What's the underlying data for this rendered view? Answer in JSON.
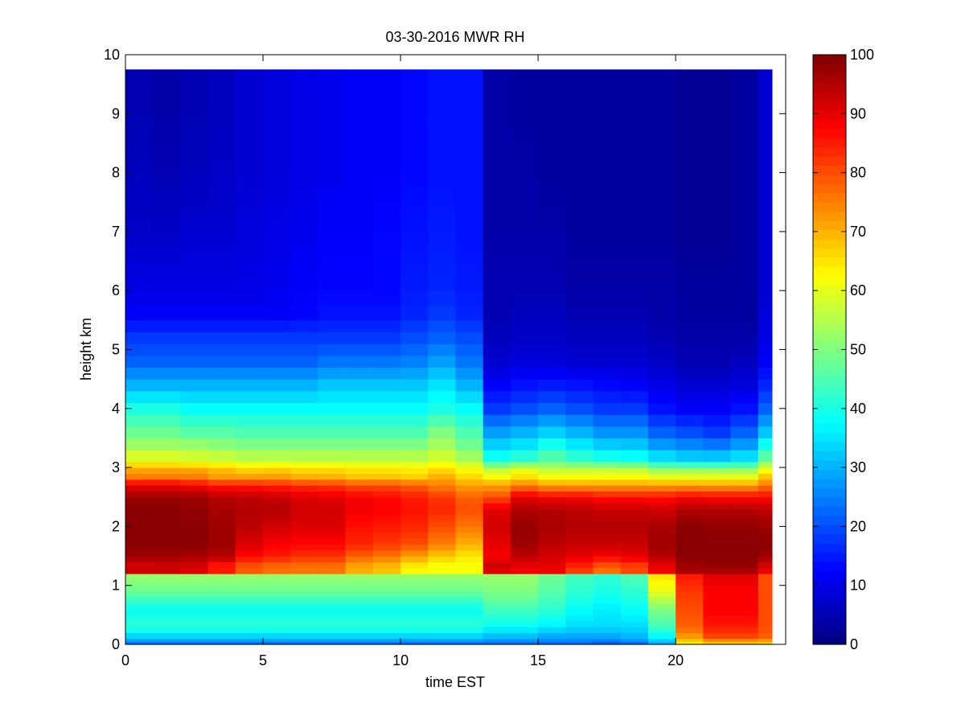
{
  "chart_data": {
    "type": "heatmap",
    "title": "03-30-2016 MWR RH",
    "xlabel": "time EST",
    "ylabel": "height km",
    "xlim": [
      0,
      24
    ],
    "ylim": [
      0,
      10
    ],
    "x_ticks": [
      0,
      5,
      10,
      15,
      20
    ],
    "y_ticks": [
      0,
      1,
      2,
      3,
      4,
      5,
      6,
      7,
      8,
      9,
      10
    ],
    "colorbar": {
      "colormap": "jet",
      "range": [
        0,
        100
      ],
      "ticks": [
        0,
        10,
        20,
        30,
        40,
        50,
        60,
        70,
        80,
        90,
        100
      ]
    },
    "grid": false,
    "x": [
      0,
      1,
      2,
      3,
      4,
      5,
      6,
      7,
      8,
      9,
      10,
      11,
      12,
      13,
      14,
      15,
      16,
      17,
      18,
      19,
      20,
      21,
      22,
      23
    ],
    "x_step": 1,
    "heights": [
      0,
      0.05,
      0.1,
      0.2,
      0.3,
      0.4,
      0.5,
      0.6,
      0.7,
      0.8,
      0.9,
      1.0,
      1.1,
      1.2,
      1.3,
      1.4,
      1.5,
      1.6,
      1.7,
      1.8,
      1.9,
      2.0,
      2.1,
      2.2,
      2.3,
      2.4,
      2.5,
      2.6,
      2.7,
      2.8,
      2.9,
      3.0,
      3.1,
      3.3,
      3.5,
      3.7,
      3.9,
      4.1,
      4.3,
      4.5,
      4.7,
      4.9,
      5.1,
      5.3,
      5.5,
      5.75,
      6.0,
      6.25,
      6.5,
      6.75,
      7.0,
      7.25,
      7.5,
      7.75,
      8.0,
      8.25,
      8.5,
      8.75,
      9.0,
      9.25,
      9.5,
      9.75
    ],
    "profiles": {
      "heights_km": [
        0.0,
        0.12,
        0.3,
        0.6,
        0.9,
        1.15,
        1.2,
        1.35,
        1.5,
        1.7,
        2.0,
        2.3,
        2.5,
        2.7,
        2.85,
        3.0,
        3.1,
        3.3,
        3.6,
        4.0,
        4.4,
        4.8,
        5.2,
        5.6,
        6.0,
        7.0,
        8.0,
        9.0,
        9.75
      ],
      "rh": [
        [
          22,
          32,
          42,
          38,
          48,
          52,
          92,
          92,
          97,
          99,
          99,
          99,
          97,
          90,
          75,
          70,
          62,
          55,
          48,
          40,
          30,
          22,
          18,
          12,
          10,
          7,
          6,
          5,
          5
        ],
        [
          22,
          32,
          42,
          38,
          48,
          52,
          92,
          93,
          97,
          99,
          99,
          99,
          97,
          90,
          75,
          70,
          62,
          55,
          48,
          40,
          30,
          22,
          18,
          12,
          10,
          7,
          5,
          4,
          4
        ],
        [
          22,
          32,
          42,
          38,
          48,
          52,
          90,
          92,
          96,
          99,
          99,
          98,
          97,
          88,
          75,
          70,
          60,
          55,
          46,
          38,
          30,
          22,
          18,
          12,
          10,
          8,
          6,
          5,
          5
        ],
        [
          22,
          32,
          42,
          38,
          48,
          52,
          85,
          86,
          95,
          97,
          97,
          96,
          95,
          85,
          72,
          68,
          60,
          53,
          46,
          38,
          30,
          22,
          18,
          12,
          10,
          8,
          7,
          6,
          6
        ],
        [
          22,
          32,
          42,
          38,
          48,
          52,
          78,
          80,
          87,
          91,
          94,
          95,
          94,
          85,
          72,
          65,
          58,
          52,
          45,
          38,
          30,
          22,
          18,
          12,
          10,
          9,
          8,
          8,
          8
        ],
        [
          22,
          32,
          42,
          38,
          48,
          52,
          76,
          78,
          85,
          88,
          92,
          95,
          93,
          84,
          72,
          66,
          58,
          52,
          45,
          38,
          30,
          22,
          18,
          12,
          11,
          10,
          9,
          9,
          9
        ],
        [
          22,
          32,
          42,
          38,
          48,
          52,
          76,
          77,
          83,
          87,
          91,
          92,
          91,
          83,
          70,
          65,
          58,
          52,
          45,
          38,
          30,
          22,
          18,
          13,
          12,
          11,
          10,
          10,
          10
        ],
        [
          22,
          32,
          42,
          38,
          48,
          52,
          76,
          77,
          83,
          87,
          91,
          92,
          90,
          82,
          70,
          65,
          58,
          52,
          45,
          38,
          32,
          24,
          18,
          14,
          13,
          12,
          11,
          11,
          11
        ],
        [
          22,
          32,
          42,
          38,
          48,
          52,
          70,
          72,
          78,
          84,
          86,
          89,
          88,
          80,
          68,
          64,
          58,
          52,
          45,
          38,
          32,
          24,
          18,
          14,
          13,
          12,
          12,
          12,
          12
        ],
        [
          22,
          32,
          42,
          38,
          48,
          52,
          68,
          70,
          76,
          82,
          85,
          88,
          87,
          80,
          68,
          64,
          58,
          52,
          45,
          38,
          32,
          24,
          18,
          14,
          13,
          13,
          12,
          12,
          12
        ],
        [
          22,
          32,
          42,
          38,
          48,
          52,
          62,
          65,
          72,
          80,
          84,
          86,
          85,
          78,
          67,
          63,
          58,
          52,
          45,
          38,
          32,
          25,
          20,
          16,
          15,
          14,
          13,
          13,
          13
        ],
        [
          22,
          32,
          42,
          38,
          48,
          52,
          62,
          62,
          68,
          75,
          80,
          84,
          82,
          75,
          70,
          65,
          60,
          55,
          50,
          40,
          35,
          28,
          22,
          18,
          16,
          15,
          14,
          14,
          14
        ],
        [
          22,
          32,
          42,
          38,
          48,
          52,
          62,
          62,
          65,
          70,
          76,
          80,
          78,
          72,
          66,
          62,
          56,
          50,
          45,
          38,
          30,
          24,
          20,
          16,
          15,
          14,
          14,
          14,
          14
        ],
        [
          22,
          30,
          38,
          44,
          50,
          52,
          90,
          92,
          88,
          90,
          92,
          90,
          80,
          72,
          62,
          55,
          42,
          35,
          28,
          18,
          12,
          8,
          6,
          5,
          5,
          4,
          4,
          4,
          4
        ],
        [
          22,
          30,
          38,
          44,
          50,
          52,
          88,
          90,
          94,
          97,
          98,
          95,
          90,
          75,
          65,
          58,
          45,
          37,
          30,
          20,
          14,
          9,
          7,
          6,
          5,
          4,
          4,
          3,
          3
        ],
        [
          22,
          28,
          36,
          42,
          46,
          48,
          88,
          90,
          92,
          94,
          96,
          95,
          88,
          72,
          62,
          55,
          48,
          42,
          33,
          22,
          15,
          9,
          7,
          6,
          5,
          4,
          3,
          3,
          3
        ],
        [
          22,
          28,
          34,
          38,
          42,
          44,
          80,
          85,
          90,
          93,
          95,
          94,
          88,
          72,
          62,
          55,
          45,
          38,
          30,
          20,
          14,
          8,
          6,
          5,
          4,
          3,
          3,
          3,
          3
        ],
        [
          20,
          28,
          34,
          36,
          40,
          42,
          75,
          80,
          88,
          93,
          95,
          93,
          86,
          72,
          62,
          55,
          43,
          35,
          27,
          18,
          13,
          8,
          6,
          5,
          4,
          3,
          3,
          3,
          3
        ],
        [
          22,
          30,
          34,
          38,
          42,
          45,
          80,
          82,
          90,
          93,
          95,
          93,
          86,
          72,
          62,
          55,
          42,
          34,
          27,
          18,
          12,
          8,
          6,
          5,
          4,
          3,
          3,
          3,
          3
        ],
        [
          28,
          36,
          44,
          50,
          60,
          65,
          88,
          90,
          95,
          97,
          96,
          92,
          86,
          72,
          60,
          50,
          38,
          30,
          22,
          14,
          10,
          7,
          5,
          4,
          4,
          3,
          3,
          3,
          3
        ],
        [
          62,
          72,
          78,
          80,
          82,
          85,
          95,
          97,
          99,
          99,
          99,
          95,
          88,
          72,
          60,
          50,
          36,
          28,
          20,
          12,
          8,
          5,
          4,
          3,
          3,
          2,
          2,
          2,
          2
        ],
        [
          65,
          80,
          85,
          88,
          88,
          90,
          95,
          98,
          99,
          99,
          98,
          95,
          87,
          72,
          60,
          50,
          36,
          27,
          18,
          12,
          8,
          5,
          4,
          3,
          3,
          2,
          2,
          2,
          2
        ],
        [
          65,
          80,
          85,
          88,
          88,
          90,
          95,
          98,
          99,
          99,
          98,
          95,
          87,
          72,
          60,
          50,
          38,
          30,
          22,
          14,
          9,
          6,
          4,
          3,
          3,
          3,
          3,
          3,
          3
        ],
        [
          65,
          78,
          80,
          80,
          80,
          80,
          88,
          92,
          97,
          99,
          97,
          94,
          87,
          76,
          68,
          60,
          50,
          42,
          32,
          22,
          16,
          12,
          10,
          9,
          8,
          8,
          8,
          8,
          8
        ]
      ]
    }
  }
}
